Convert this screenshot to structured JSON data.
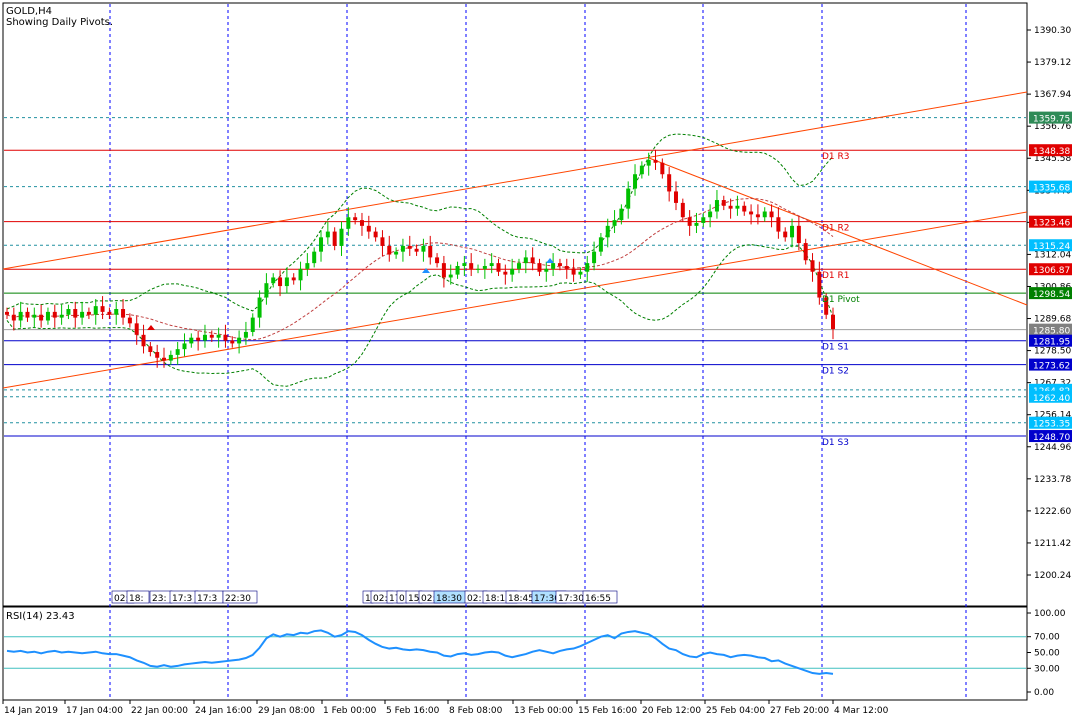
{
  "header": {
    "symbol_line": "GOLD,H4",
    "subtitle": "Showing Daily Pivots."
  },
  "price_axis": {
    "ticks": [
      "1390.30",
      "1379.12",
      "1367.94",
      "1356.76",
      "1345.58",
      "1334.40",
      "1323.22",
      "1312.04",
      "1300.86",
      "1289.68",
      "1278.50",
      "1267.32",
      "1256.14",
      "1244.96",
      "1233.78",
      "1222.60",
      "1211.42",
      "1200.24"
    ]
  },
  "price_markers": [
    {
      "value": "1359.75",
      "color": "#2e8b57"
    },
    {
      "value": "1348.38",
      "color": "#e00000"
    },
    {
      "value": "1335.68",
      "color": "#00bfff"
    },
    {
      "value": "1323.46",
      "color": "#e00000"
    },
    {
      "value": "1315.24",
      "color": "#00bfff"
    },
    {
      "value": "1306.87",
      "color": "#e00000"
    },
    {
      "value": "1298.54",
      "color": "#008000"
    },
    {
      "value": "1285.80",
      "color": "#808080"
    },
    {
      "value": "1281.95",
      "color": "#0000cc"
    },
    {
      "value": "1273.62",
      "color": "#0000cc"
    },
    {
      "value": "1264.82",
      "color": "#00bfff"
    },
    {
      "value": "1262.40",
      "color": "#00bfff"
    },
    {
      "value": "1253.35",
      "color": "#00bfff"
    },
    {
      "value": "1248.70",
      "color": "#0000cc"
    }
  ],
  "pivot_labels": [
    {
      "text": "D1 R3",
      "level": 1348.38
    },
    {
      "text": "D1 R2",
      "level": 1323.46
    },
    {
      "text": "D1 R1",
      "level": 1306.87
    },
    {
      "text": "D1 Pivot",
      "level": 1298.54
    },
    {
      "text": "D1 S1",
      "level": 1281.95
    },
    {
      "text": "D1 S2",
      "level": 1273.62
    },
    {
      "text": "D1 S3",
      "level": 1248.7
    }
  ],
  "event_tags": [
    {
      "text": "02:"
    },
    {
      "text": "18:"
    },
    {
      "text": "23:"
    },
    {
      "text": "17:3"
    },
    {
      "text": "17:3"
    },
    {
      "text": "22:30"
    },
    {
      "text": "1"
    },
    {
      "text": "02:"
    },
    {
      "text": "17"
    },
    {
      "text": "0"
    },
    {
      "text": "15"
    },
    {
      "text": "02:"
    },
    {
      "text": "18:30"
    },
    {
      "text": "02:"
    },
    {
      "text": "18:15"
    },
    {
      "text": "18:45"
    },
    {
      "text": "17:30"
    },
    {
      "text": "17:30"
    },
    {
      "text": "16:55"
    }
  ],
  "rsi": {
    "label": "RSI(14) 23.43",
    "ticks": [
      "100.00",
      "70.00",
      "50.00",
      "30.00",
      "0.00"
    ],
    "values": [
      52,
      51,
      52,
      50,
      51,
      49,
      51,
      52,
      50,
      51,
      50,
      49,
      50,
      51,
      49,
      48,
      48,
      46,
      44,
      40,
      37,
      33,
      32,
      34,
      32,
      33,
      35,
      36,
      37,
      38,
      37,
      38,
      39,
      40,
      41,
      43,
      47,
      56,
      68,
      73,
      70,
      73,
      72,
      75,
      74,
      77,
      78,
      75,
      70,
      72,
      77,
      76,
      72,
      66,
      61,
      57,
      55,
      56,
      54,
      53,
      54,
      53,
      51,
      50,
      46,
      45,
      48,
      49,
      47,
      48,
      50,
      51,
      50,
      46,
      44,
      46,
      48,
      51,
      53,
      51,
      49,
      52,
      54,
      55,
      58,
      62,
      66,
      70,
      72,
      68,
      74,
      76,
      77,
      75,
      73,
      68,
      61,
      55,
      53,
      48,
      45,
      44,
      48,
      50,
      48,
      47,
      44,
      46,
      47,
      46,
      44,
      43,
      39,
      40,
      36,
      33,
      30,
      27,
      24,
      23,
      24,
      23
    ]
  },
  "time_axis": {
    "labels": [
      "14 Jan 2019",
      "17 Jan 04:00",
      "22 Jan 00:00",
      "24 Jan 16:00",
      "29 Jan 08:00",
      "1 Feb 00:00",
      "5 Feb 16:00",
      "8 Feb 08:00",
      "13 Feb 00:00",
      "15 Feb 16:00",
      "20 Feb 12:00",
      "25 Feb 04:00",
      "27 Feb 20:00",
      "4 Mar 12:00"
    ]
  },
  "chart_data": {
    "type": "candlestick",
    "title": "GOLD,H4",
    "subtitle": "Showing Daily Pivots.",
    "ylim": [
      1195.0,
      1392.0
    ],
    "bull_color": "#00c000",
    "bear_color": "#e00000",
    "close": [
      1291,
      1289,
      1292,
      1290,
      1291,
      1289,
      1292,
      1290,
      1291,
      1293,
      1290,
      1292,
      1291,
      1294,
      1292,
      1291,
      1293,
      1290,
      1288,
      1284,
      1280,
      1278,
      1276,
      1275,
      1277,
      1279,
      1281,
      1283,
      1282,
      1284,
      1283,
      1284,
      1282,
      1281,
      1283,
      1285,
      1290,
      1297,
      1302,
      1304,
      1301,
      1304,
      1303,
      1307,
      1309,
      1313,
      1318,
      1320,
      1315,
      1321,
      1325,
      1324,
      1322,
      1320,
      1318,
      1315,
      1312,
      1313,
      1315,
      1314,
      1313,
      1315,
      1311,
      1309,
      1304,
      1305,
      1308,
      1309,
      1307,
      1307,
      1308,
      1309,
      1306,
      1305,
      1307,
      1309,
      1311,
      1309,
      1306,
      1307,
      1309,
      1308,
      1307,
      1305,
      1306,
      1309,
      1313,
      1318,
      1322,
      1324,
      1328,
      1335,
      1340,
      1343,
      1345,
      1344,
      1340,
      1334,
      1330,
      1325,
      1322,
      1323,
      1325,
      1327,
      1331,
      1329,
      1328,
      1329,
      1327,
      1326,
      1325,
      1327,
      1325,
      1320,
      1318,
      1322,
      1316,
      1310,
      1306,
      1297,
      1291,
      1286
    ]
  },
  "colors": {
    "grid_vertical": "#0000ff",
    "trendline": "#ff4500",
    "pivot_red": "#e00000",
    "pivot_green": "#008000",
    "pivot_blue": "#0000cc",
    "dotted_cyan": "#00bfff",
    "rsi_line": "#1e90ff",
    "rsi_levels": "#40c0c0",
    "bands": "#008000"
  }
}
